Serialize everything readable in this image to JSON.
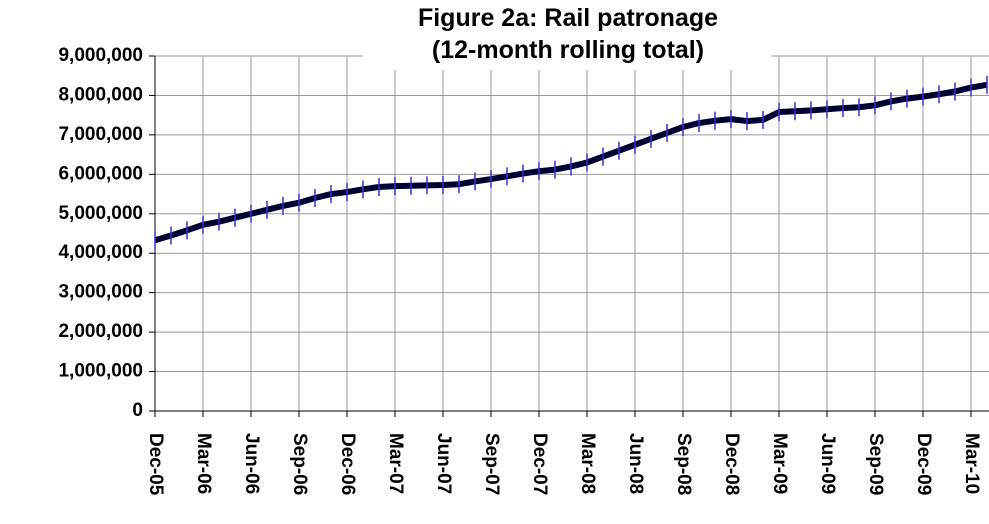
{
  "chart_data": {
    "type": "line",
    "title": "Figure 2a: Rail patronage",
    "subtitle": "(12-month rolling total)",
    "categories": [
      "Dec-05",
      null,
      null,
      "Mar-06",
      null,
      null,
      "Jun-06",
      null,
      null,
      "Sep-06",
      null,
      null,
      "Dec-06",
      null,
      null,
      "Mar-07",
      null,
      null,
      "Jun-07",
      null,
      null,
      "Sep-07",
      null,
      null,
      "Dec-07",
      null,
      null,
      "Mar-08",
      null,
      null,
      "Jun-08",
      null,
      null,
      "Sep-08",
      null,
      null,
      "Dec-08",
      null,
      null,
      "Mar-09",
      null,
      null,
      "Jun-09",
      null,
      null,
      "Sep-09",
      null,
      null,
      "Dec-09",
      null,
      null,
      "Mar-10",
      null
    ],
    "series": [
      {
        "name": "Rail patronage",
        "color": "#000033",
        "marker_color": "#3333cc",
        "values": [
          4330000,
          4450000,
          4580000,
          4720000,
          4800000,
          4900000,
          5000000,
          5100000,
          5200000,
          5280000,
          5400000,
          5500000,
          5550000,
          5620000,
          5680000,
          5700000,
          5710000,
          5720000,
          5730000,
          5750000,
          5820000,
          5880000,
          5950000,
          6020000,
          6080000,
          6120000,
          6200000,
          6300000,
          6450000,
          6600000,
          6750000,
          6900000,
          7050000,
          7200000,
          7300000,
          7360000,
          7400000,
          7350000,
          7380000,
          7580000,
          7600000,
          7620000,
          7650000,
          7680000,
          7700000,
          7750000,
          7850000,
          7920000,
          7970000,
          8030000,
          8100000,
          8200000,
          8270000
        ]
      }
    ],
    "ylim": [
      0,
      9000000
    ],
    "yticks": [
      0,
      {
        "value": 1000000,
        "label": "1,000,000"
      },
      {
        "value": 2000000,
        "label": "2,000,000"
      },
      {
        "value": 3000000,
        "label": "3,000,000"
      },
      {
        "value": 4000000,
        "label": "4,000,000"
      },
      {
        "value": 5000000,
        "label": "5,000,000"
      },
      {
        "value": 6000000,
        "label": "6,000,000"
      },
      {
        "value": 7000000,
        "label": "7,000,000"
      },
      {
        "value": 8000000,
        "label": "8,000,000"
      },
      {
        "value": 9000000,
        "label": "9,000,000"
      }
    ],
    "grid": true
  }
}
